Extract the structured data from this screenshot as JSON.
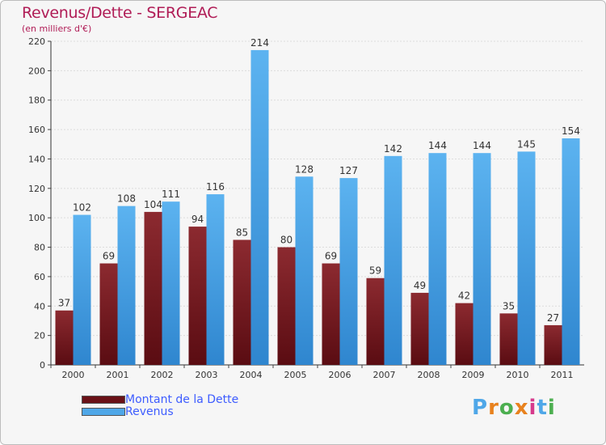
{
  "header": {
    "title": "Revenus/Dette - SERGEAC",
    "subtitle": "(en milliers d'€)"
  },
  "legend": {
    "debt_label": "Montant de la Dette",
    "revenue_label": "Revenus"
  },
  "logo": {
    "text": "Proxiti"
  },
  "colors": {
    "debt": "#7a1a22",
    "revenue": "#4fa7e8",
    "title": "#b01c56"
  },
  "chart_data": {
    "type": "bar",
    "title": "Revenus/Dette - SERGEAC",
    "ylabel": "(en milliers d'€)",
    "xlabel": "",
    "ylim": [
      0,
      220
    ],
    "yticks": [
      0,
      20,
      40,
      60,
      80,
      100,
      120,
      140,
      160,
      180,
      200,
      220
    ],
    "grid": true,
    "legend_position": "bottom-left",
    "categories": [
      "2000",
      "2001",
      "2002",
      "2003",
      "2004",
      "2005",
      "2006",
      "2007",
      "2008",
      "2009",
      "2010",
      "2011"
    ],
    "series": [
      {
        "name": "Montant de la Dette",
        "values": [
          37,
          69,
          104,
          94,
          85,
          80,
          69,
          59,
          49,
          42,
          35,
          27
        ]
      },
      {
        "name": "Revenus",
        "values": [
          102,
          108,
          111,
          116,
          214,
          128,
          127,
          142,
          144,
          144,
          145,
          154
        ]
      }
    ]
  }
}
